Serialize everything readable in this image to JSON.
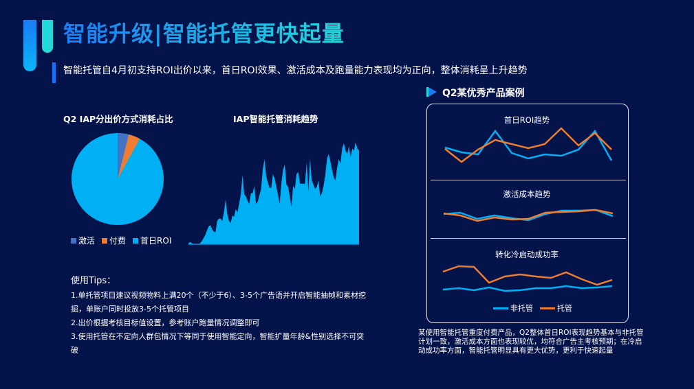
{
  "header": {
    "title": "智能升级|智能托管更快起量",
    "subtitle": "智能托管自4月初支持ROI出价以来，首日ROI效果、激活成本及跑量能力表现均为正向，整体消耗呈上升趋势"
  },
  "pie": {
    "title": "Q2 IAP分出价方式消耗占比",
    "legend": [
      {
        "label": "激活",
        "color": "#4472c4"
      },
      {
        "label": "付费",
        "color": "#ed7d31"
      },
      {
        "label": "首日ROI",
        "color": "#00b0f5"
      }
    ]
  },
  "area": {
    "title": "IAP智能托管消耗趋势"
  },
  "tips": {
    "heading": "使用Tips：",
    "items": [
      "1.单托管项目建议视频物料上满20个（不少于6）、3-5个广告语并开启智能抽帧和素材挖掘，单账户同时投放3-5个托管项目",
      "2.出价根据考核目标值设置，参考账户跑量情况调整即可",
      "3.使用托管在不定向人群包情况下等同于使用智能定向，智能扩量年龄&性别选择不可突破"
    ]
  },
  "case": {
    "title": "Q2某优秀产品案例",
    "charts": [
      {
        "label": "首日ROI趋势"
      },
      {
        "label": "激活成本趋势"
      },
      {
        "label": "转化冷启动成功率"
      }
    ],
    "legend": [
      {
        "label": "非托管",
        "color": "#00b0f5"
      },
      {
        "label": "托管",
        "color": "#ed7d31"
      }
    ],
    "note": "某使用智能托管重度付费产品，Q2整体首日ROI表现趋势基本与非托管计划一致，激活成本方面也表现较优，均符合广告主考核预期；在冷启动成功率方面，智能托管明显具有更大优势，更利于快速起量"
  },
  "colors": {
    "background": "#04134a",
    "accent_blue": "#1a7cf5",
    "accent_teal": "#22d8d8",
    "series_blue": "#00b0f5",
    "series_orange": "#ed7d31"
  },
  "chart_data": [
    {
      "type": "pie",
      "title": "Q2 IAP分出价方式消耗占比",
      "categories": [
        "激活",
        "付费",
        "首日ROI"
      ],
      "values": [
        4,
        4,
        92
      ],
      "legend_position": "bottom"
    },
    {
      "type": "area",
      "title": "IAP智能托管消耗趋势",
      "xlabel": "",
      "ylabel": "",
      "note": "relative values (0-100), no axes shown",
      "values": [
        1,
        2,
        1,
        0,
        0,
        0,
        0,
        1,
        3,
        6,
        9,
        13,
        17,
        18,
        14,
        12,
        11,
        22,
        24,
        24,
        22,
        30,
        42,
        28,
        22,
        20,
        27,
        26,
        33,
        30,
        38,
        47,
        65,
        47,
        45,
        41,
        38,
        48,
        48,
        55,
        38,
        40,
        46,
        52,
        70,
        80,
        64,
        58,
        53,
        53,
        66,
        62,
        54,
        47,
        38,
        57,
        70,
        75,
        56,
        54,
        45,
        35,
        55,
        52,
        66,
        68,
        57,
        57,
        57,
        57,
        77,
        50,
        80,
        60,
        56,
        52,
        54,
        60,
        45,
        48,
        55,
        65,
        80,
        85,
        78,
        70,
        63,
        60,
        72,
        80,
        76,
        90,
        95,
        88,
        85,
        92,
        82,
        90,
        88,
        96,
        90,
        88
      ]
    },
    {
      "type": "line",
      "title": "首日ROI趋势",
      "series": [
        {
          "name": "非托管",
          "values": [
            57,
            48,
            44,
            90,
            47,
            37,
            44,
            42,
            52,
            90,
            33
          ]
        },
        {
          "name": "托管",
          "values": [
            55,
            31,
            54,
            72,
            64,
            57,
            64,
            95,
            61,
            82,
            55
          ]
        }
      ]
    },
    {
      "type": "line",
      "title": "激活成本趋势",
      "series": [
        {
          "name": "非托管",
          "values": [
            63,
            67,
            44,
            56,
            46,
            38,
            63,
            75,
            75,
            77,
            56
          ]
        },
        {
          "name": "托管",
          "values": [
            65,
            58,
            38,
            50,
            42,
            44,
            67,
            71,
            73,
            77,
            67
          ]
        }
      ]
    },
    {
      "type": "line",
      "title": "转化冷启动成功率",
      "series": [
        {
          "name": "非托管",
          "values": [
            30,
            33,
            28,
            35,
            27,
            28,
            33,
            33,
            38,
            33,
            35,
            38
          ]
        },
        {
          "name": "托管",
          "values": [
            70,
            85,
            83,
            43,
            60,
            65,
            60,
            57,
            70,
            52,
            38,
            50
          ]
        }
      ],
      "legend_position": "bottom"
    }
  ]
}
